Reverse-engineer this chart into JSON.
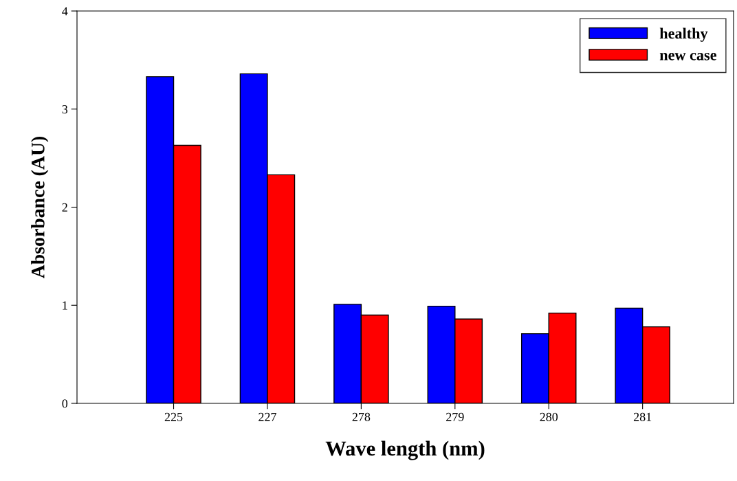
{
  "chart_data": {
    "type": "bar",
    "xlabel": "Wave length (nm)",
    "ylabel": "Absorbance (AU)",
    "categories": [
      "225",
      "227",
      "278",
      "279",
      "280",
      "281"
    ],
    "series": [
      {
        "name": "healthy",
        "color": "#0000ff",
        "values": [
          3.33,
          3.36,
          1.01,
          0.99,
          0.71,
          0.97
        ]
      },
      {
        "name": "new case",
        "color": "#ff0000",
        "values": [
          2.63,
          2.33,
          0.9,
          0.86,
          0.92,
          0.78
        ]
      }
    ],
    "ylim": [
      0,
      4
    ],
    "yticks": [
      0,
      1,
      2,
      3,
      4
    ],
    "grid": false,
    "legend": "top right"
  }
}
